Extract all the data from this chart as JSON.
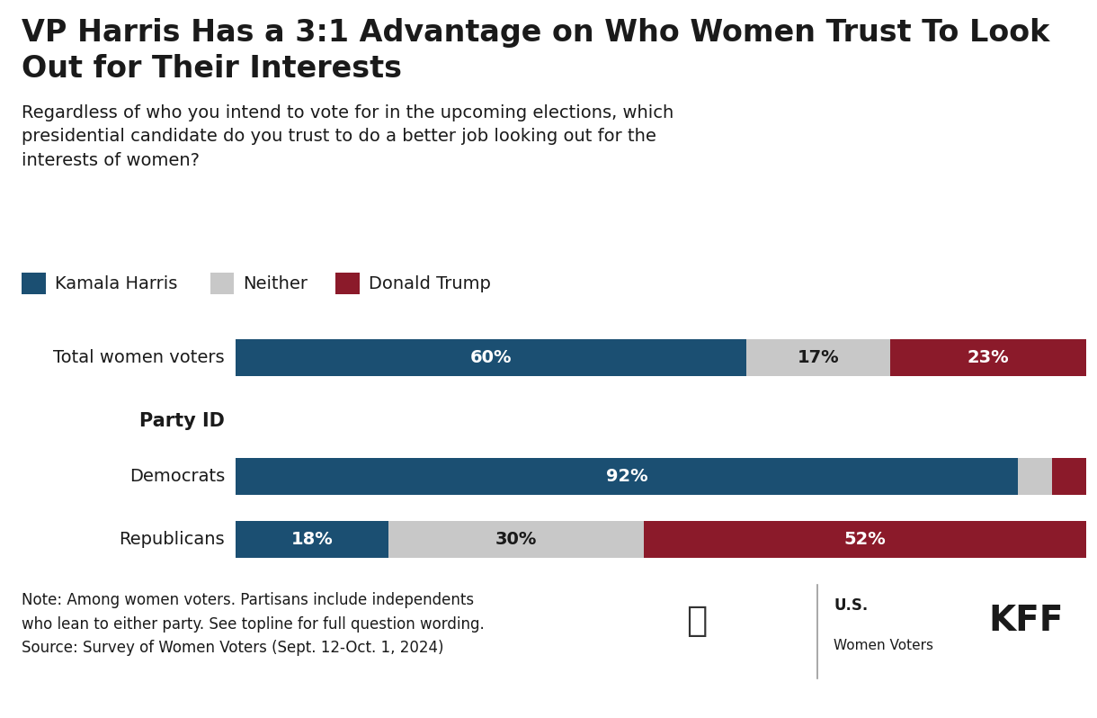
{
  "title_line1": "VP Harris Has a 3:1 Advantage on Who Women Trust To Look",
  "title_line2": "Out for Their Interests",
  "subtitle": "Regardless of who you intend to vote for in the upcoming elections, which\npresidential candidate do you trust to do a better job looking out for the\ninterests of women?",
  "legend_items": [
    {
      "label": "Kamala Harris",
      "color": "#1B4F72"
    },
    {
      "label": "Neither",
      "color": "#C8C8C8"
    },
    {
      "label": "Donald Trump",
      "color": "#8B1A2A"
    }
  ],
  "rows": [
    {
      "label": "Total women voters",
      "harris": 60,
      "neither": 17,
      "trump": 23,
      "header": false,
      "bold": false
    },
    {
      "label": "Party ID",
      "harris": null,
      "neither": null,
      "trump": null,
      "header": true,
      "bold": true
    },
    {
      "label": "Democrats",
      "harris": 92,
      "neither": 4,
      "trump": 4,
      "header": false,
      "bold": false
    },
    {
      "label": "Republicans",
      "harris": 18,
      "neither": 30,
      "trump": 52,
      "header": false,
      "bold": false
    }
  ],
  "colors": {
    "harris": "#1B4F72",
    "neither": "#C8C8C8",
    "trump": "#8B1A2A"
  },
  "note_lines": [
    "Note: Among women voters. Partisans include independents",
    "who lean to either party. See topline for full question wording.",
    "Source: Survey of Women Voters (Sept. 12-Oct. 1, 2024)"
  ],
  "background_color": "#FFFFFF",
  "text_color": "#1A1A1A",
  "bar_text_color_dark": "#1A1A1A",
  "title_fontsize": 24,
  "subtitle_fontsize": 14,
  "legend_fontsize": 14,
  "bar_label_fontsize": 14,
  "row_label_fontsize": 14,
  "note_fontsize": 12,
  "kff_fontsize": 28
}
